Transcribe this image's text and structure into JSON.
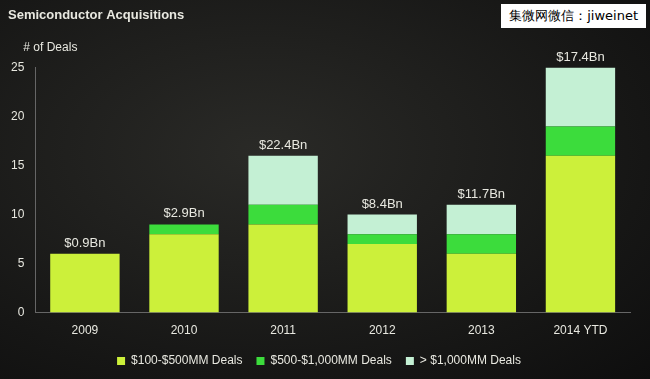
{
  "chart_data": {
    "type": "bar",
    "title": "Semiconductor Acquisitions",
    "y_label": "# of Deals",
    "categories": [
      "2009",
      "2010",
      "2011",
      "2012",
      "2013",
      "2014 YTD"
    ],
    "series": [
      {
        "name": "$100-$500MM Deals",
        "color": "#ccf03a",
        "values": [
          6,
          8,
          9,
          7,
          6,
          16
        ]
      },
      {
        "name": "$500-$1,000MM Deals",
        "color": "#3cdc3c",
        "values": [
          0,
          1,
          2,
          1,
          2,
          3
        ]
      },
      {
        "name": "> $1,000MM Deals",
        "color": "#c4f0d4",
        "values": [
          0,
          0,
          5,
          2,
          3,
          6
        ]
      }
    ],
    "total_labels": [
      "$0.9Bn",
      "$2.9Bn",
      "$22.4Bn",
      "$8.4Bn",
      "$11.7Bn",
      "$17.4Bn"
    ],
    "stacked": true,
    "ylim": [
      0,
      25
    ],
    "yticks": [
      0,
      5,
      10,
      15,
      20,
      25
    ],
    "grid": false,
    "legend": "bottom",
    "watermark": "集微网微信：jiweinet"
  }
}
